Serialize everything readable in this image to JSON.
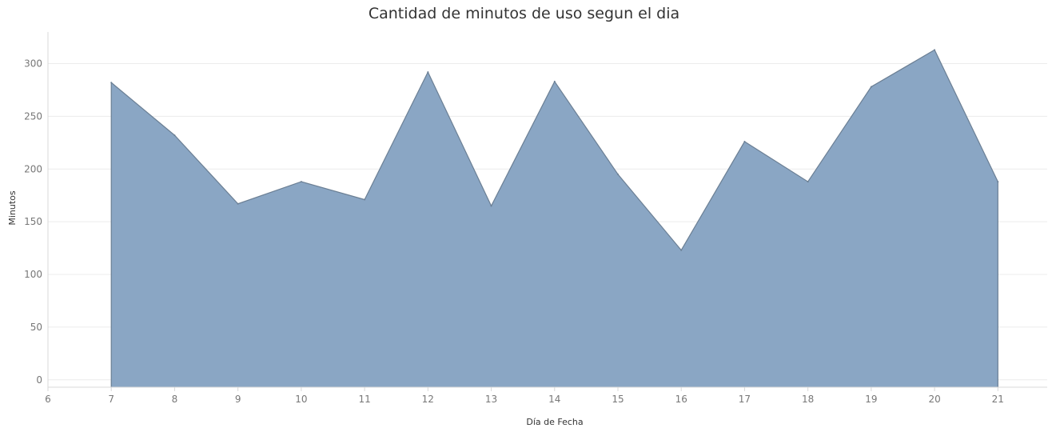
{
  "chart_data": {
    "type": "area",
    "title": "Cantidad de minutos de uso segun el dia",
    "xlabel": "Día de Fecha",
    "ylabel": "Minutos",
    "x": [
      7,
      8,
      9,
      10,
      11,
      12,
      13,
      14,
      15,
      16,
      17,
      18,
      19,
      20,
      21
    ],
    "series": [
      {
        "values": [
          282,
          232,
          167,
          188,
          171,
          292,
          165,
          283,
          195,
          123,
          226,
          188,
          278,
          313,
          188
        ]
      }
    ],
    "xlim": [
      6,
      21.4
    ],
    "ylim": [
      -7,
      330
    ],
    "xticks": [
      6,
      7,
      8,
      9,
      10,
      11,
      12,
      13,
      14,
      15,
      16,
      17,
      18,
      19,
      20,
      21
    ],
    "yticks": [
      0,
      50,
      100,
      150,
      200,
      250,
      300
    ],
    "grid": "horizontal",
    "colors": {
      "fill": "#8aa6c4",
      "stroke": "#6b7f94",
      "grid": "#ececec",
      "axis": "#d8d8d8"
    }
  }
}
